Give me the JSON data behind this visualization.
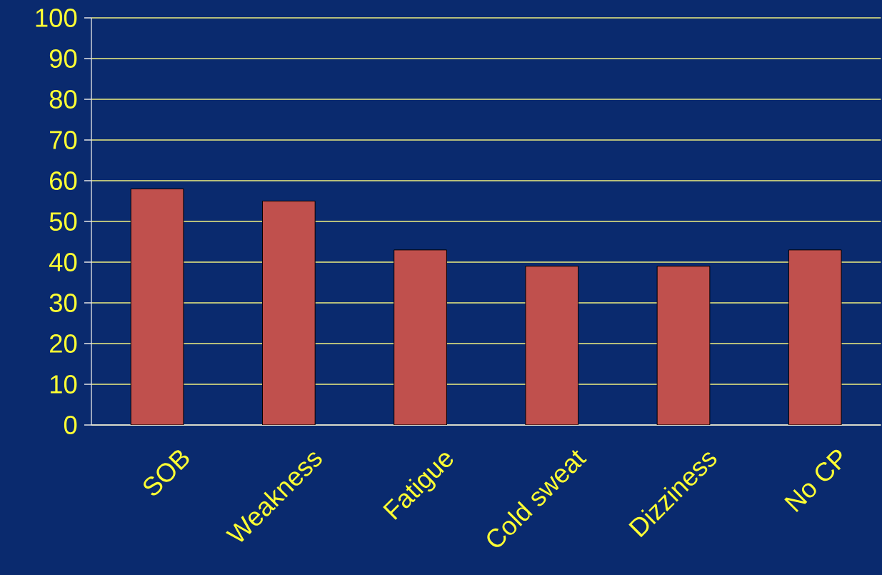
{
  "chart_data": {
    "type": "bar",
    "categories": [
      "SOB",
      "Weakness",
      "Fatigue",
      "Cold sweat",
      "Dizziness",
      "No CP"
    ],
    "values": [
      58,
      55,
      43,
      39,
      39,
      43
    ],
    "color": "#c0504d",
    "ylim": [
      0,
      100
    ],
    "yticks": [
      0,
      10,
      20,
      30,
      40,
      50,
      60,
      70,
      80,
      90,
      100
    ],
    "grid": "y"
  }
}
